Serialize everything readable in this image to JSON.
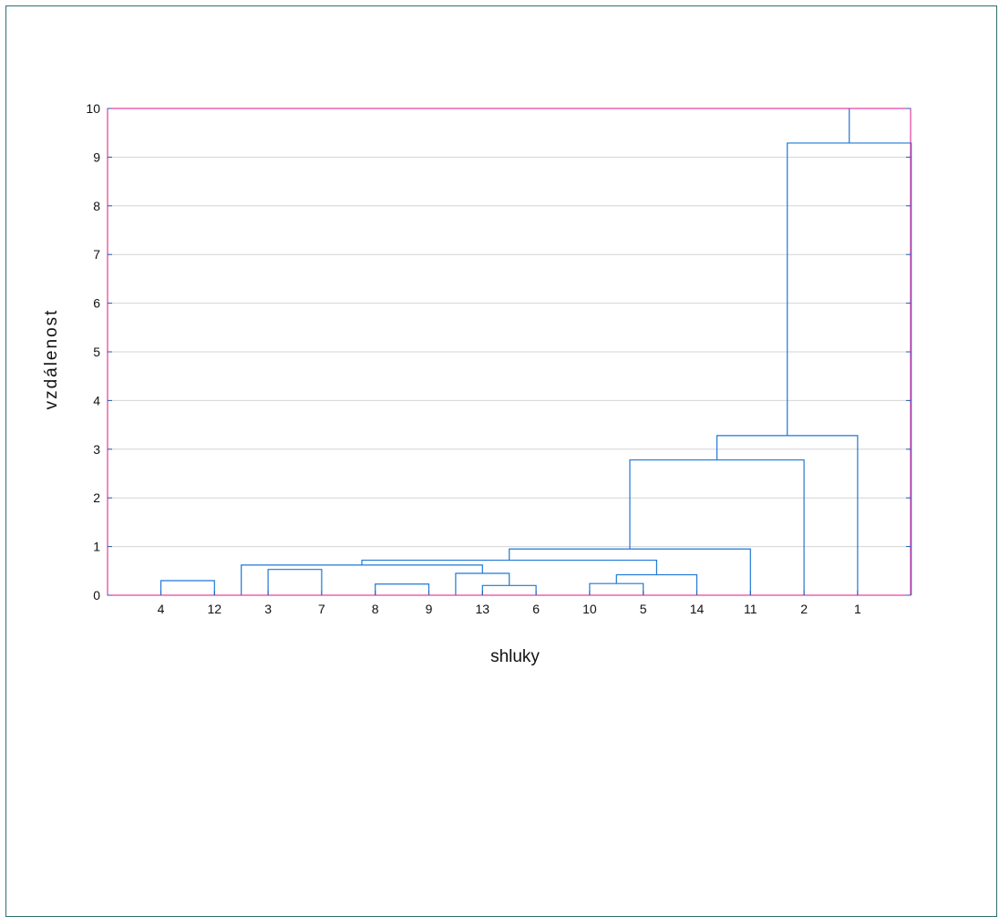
{
  "chart_data": {
    "type": "dendrogram",
    "xlabel": "shluky",
    "ylabel": "vzdálenost",
    "ylim": [
      0,
      10
    ],
    "yticks": [
      "0",
      "1",
      "2",
      "3",
      "4",
      "5",
      "6",
      "7",
      "8",
      "9",
      "10"
    ],
    "leaf_order": [
      "4",
      "12",
      "3",
      "7",
      "8",
      "9",
      "13",
      "6",
      "10",
      "5",
      "14",
      "11",
      "2",
      "1"
    ],
    "merges": [
      {
        "left": 1,
        "right": 2,
        "height": 0.3
      },
      {
        "left": 3,
        "right": 4,
        "height": 0.53
      },
      {
        "left": 5,
        "right": 6,
        "height": 0.23
      },
      {
        "left": 7,
        "right": 8,
        "height": 0.2
      },
      {
        "left": 6.5,
        "right": 7.5,
        "height": 0.45
      },
      {
        "left": 9,
        "right": 10,
        "height": 0.24
      },
      {
        "left": 9.5,
        "right": 11,
        "height": 0.42
      },
      {
        "left": 2.5,
        "right": 7,
        "height": 0.62
      },
      {
        "left": 4.75,
        "right": 10.25,
        "height": 0.72
      },
      {
        "left": 7.5,
        "right": 12,
        "height": 0.95
      },
      {
        "left": 9.75,
        "right": 13,
        "height": 2.78
      },
      {
        "left": 11.375,
        "right": 14,
        "height": 3.28
      },
      {
        "left": 12.6875,
        "right": 15,
        "height": 9.29
      },
      {
        "left": 13.84375,
        "right": 13.84375,
        "height": 10
      }
    ],
    "colors": {
      "links": "#1f78d6",
      "axes_box": "#e0148c",
      "grid": "#d4d4d4",
      "frame": "#2f6f6f"
    },
    "grid": true
  }
}
